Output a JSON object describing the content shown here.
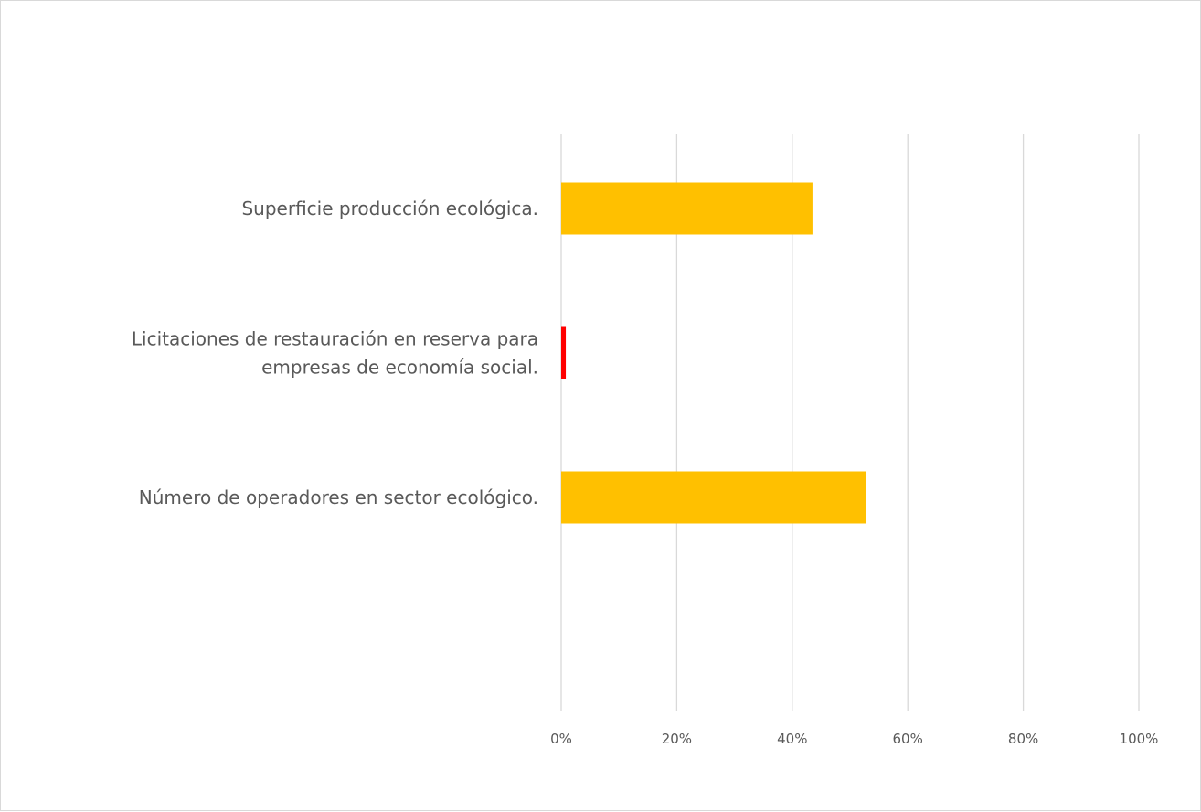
{
  "chart_data": {
    "type": "bar",
    "orientation": "horizontal",
    "title": "",
    "xlabel": "",
    "ylabel": "",
    "categories": [
      [
        "Superficie producción ecológica."
      ],
      [
        "Licitaciones de restauración en reserva para",
        "empresas de economía social."
      ],
      [
        "Número de operadores en sector ecológico."
      ]
    ],
    "values": [
      43.5,
      0.8,
      52.7
    ],
    "bar_colors": [
      "#FFC000",
      "#FF0000",
      "#FFC000"
    ],
    "xlim": [
      0,
      100
    ],
    "x_ticks": [
      "0%",
      "20%",
      "40%",
      "60%",
      "80%",
      "100%"
    ],
    "grid": true,
    "legend": "none"
  }
}
